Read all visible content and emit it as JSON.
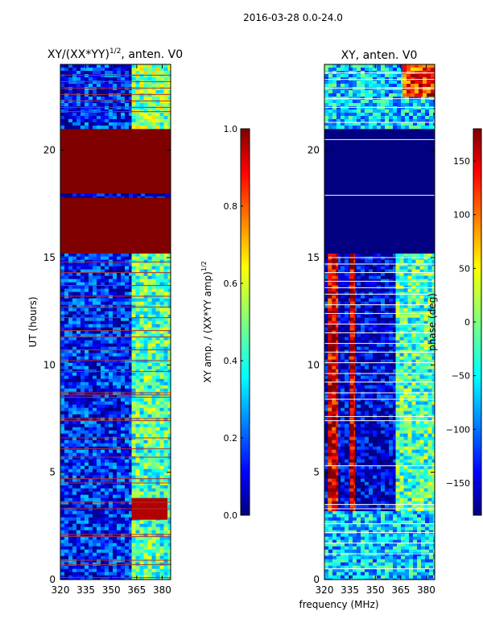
{
  "figure_title": "2016-03-28 0.0-24.0",
  "shared_xlabel": "frequency (MHz)",
  "chart_data": [
    {
      "type": "heatmap",
      "title_main": "XY/(XX*YY)",
      "title_sup": "1/2",
      "title_suffix": ", anten. V0",
      "ylabel": "UT (hours)",
      "xlim": [
        320,
        385
      ],
      "ylim": [
        0,
        24
      ],
      "xticks": [
        320,
        335,
        350,
        365,
        380
      ],
      "yticks": [
        0,
        5,
        10,
        15,
        20
      ],
      "colorbar": {
        "label_main": "XY amp. / (XX*YY amp)",
        "label_sup": "1/2",
        "range": [
          0.0,
          1.0
        ],
        "ticks": [
          "0.0",
          "0.2",
          "0.4",
          "0.6",
          "0.8",
          "1.0"
        ],
        "tick_values": [
          0.0,
          0.2,
          0.4,
          0.6,
          0.8,
          1.0
        ]
      },
      "regions": [
        {
          "ut_range": [
            0,
            15.2
          ],
          "freq_range": [
            320,
            362
          ],
          "level": 0.15
        },
        {
          "ut_range": [
            0,
            15.2
          ],
          "freq_range": [
            362,
            385
          ],
          "level": 0.45
        },
        {
          "ut_range": [
            2.8,
            3.8
          ],
          "freq_range": [
            362,
            383
          ],
          "level": 0.95
        },
        {
          "ut_range": [
            15.2,
            17.8
          ],
          "freq_range": [
            320,
            385
          ],
          "level": 1.0
        },
        {
          "ut_range": [
            17.8,
            18.0
          ],
          "freq_range": [
            320,
            385
          ],
          "level": 0.05
        },
        {
          "ut_range": [
            18.0,
            21.0
          ],
          "freq_range": [
            320,
            385
          ],
          "level": 1.0
        },
        {
          "ut_range": [
            21.0,
            24
          ],
          "freq_range": [
            320,
            362
          ],
          "level": 0.15
        },
        {
          "ut_range": [
            21.0,
            24
          ],
          "freq_range": [
            362,
            385
          ],
          "level": 0.5
        }
      ],
      "flag_lines_ut": [
        0.1,
        0.7,
        0.9,
        2.0,
        2.1,
        3.3,
        3.6,
        4.5,
        4.7,
        5.7,
        6.1,
        6.6,
        7.4,
        7.5,
        8.5,
        8.6,
        8.7,
        9.7,
        10.2,
        10.7,
        11.3,
        11.6,
        12.2,
        12.7,
        13.2,
        13.7,
        14.3,
        14.8,
        21.8,
        22.0,
        22.3,
        22.6,
        22.9,
        23.2,
        23.5
      ]
    },
    {
      "type": "heatmap",
      "title_main": "XY, anten. V0",
      "ylabel": "",
      "xlim": [
        320,
        385
      ],
      "ylim": [
        0,
        24
      ],
      "xticks": [
        320,
        335,
        350,
        365,
        380
      ],
      "yticks": [
        0,
        5,
        10,
        15,
        20
      ],
      "colorbar": {
        "label_main": "phase (deg)",
        "range": [
          -180,
          180
        ],
        "ticks": [
          "150",
          "100",
          "50",
          "0",
          "−50",
          "−100",
          "−150"
        ],
        "tick_values": [
          150,
          100,
          50,
          0,
          -50,
          -100,
          -150
        ]
      },
      "regions": [
        {
          "ut_range": [
            0,
            3.2
          ],
          "freq_range": [
            320,
            385
          ],
          "phase": -60
        },
        {
          "ut_range": [
            3.2,
            15.2
          ],
          "freq_range": [
            320,
            385
          ],
          "phase": -150
        },
        {
          "ut_range": [
            3.2,
            15.2
          ],
          "freq_range": [
            322,
            328
          ],
          "phase": 150
        },
        {
          "ut_range": [
            3.2,
            15.2
          ],
          "freq_range": [
            335,
            338
          ],
          "phase": 160
        },
        {
          "ut_range": [
            3.2,
            15.2
          ],
          "freq_range": [
            362,
            385
          ],
          "phase": -20
        },
        {
          "ut_range": [
            15.2,
            21.0
          ],
          "freq_range": [
            320,
            385
          ],
          "phase": -180
        },
        {
          "ut_range": [
            21.0,
            24
          ],
          "freq_range": [
            320,
            385
          ],
          "phase": -60
        },
        {
          "ut_range": [
            22.5,
            24
          ],
          "freq_range": [
            366,
            385
          ],
          "phase": 120
        }
      ],
      "flag_lines_ut": [
        0.5,
        1.2,
        1.7,
        2.2,
        2.6,
        3.3,
        3.5,
        5.3,
        7.4,
        7.6,
        8.4,
        8.7,
        9.2,
        9.6,
        10.1,
        10.6,
        11.0,
        11.5,
        11.9,
        12.4,
        12.8,
        13.3,
        13.6,
        13.9,
        14.3,
        14.7,
        15.0,
        17.9,
        20.5,
        21.3,
        22.0,
        22.4,
        22.9,
        23.3,
        23.6
      ]
    }
  ]
}
